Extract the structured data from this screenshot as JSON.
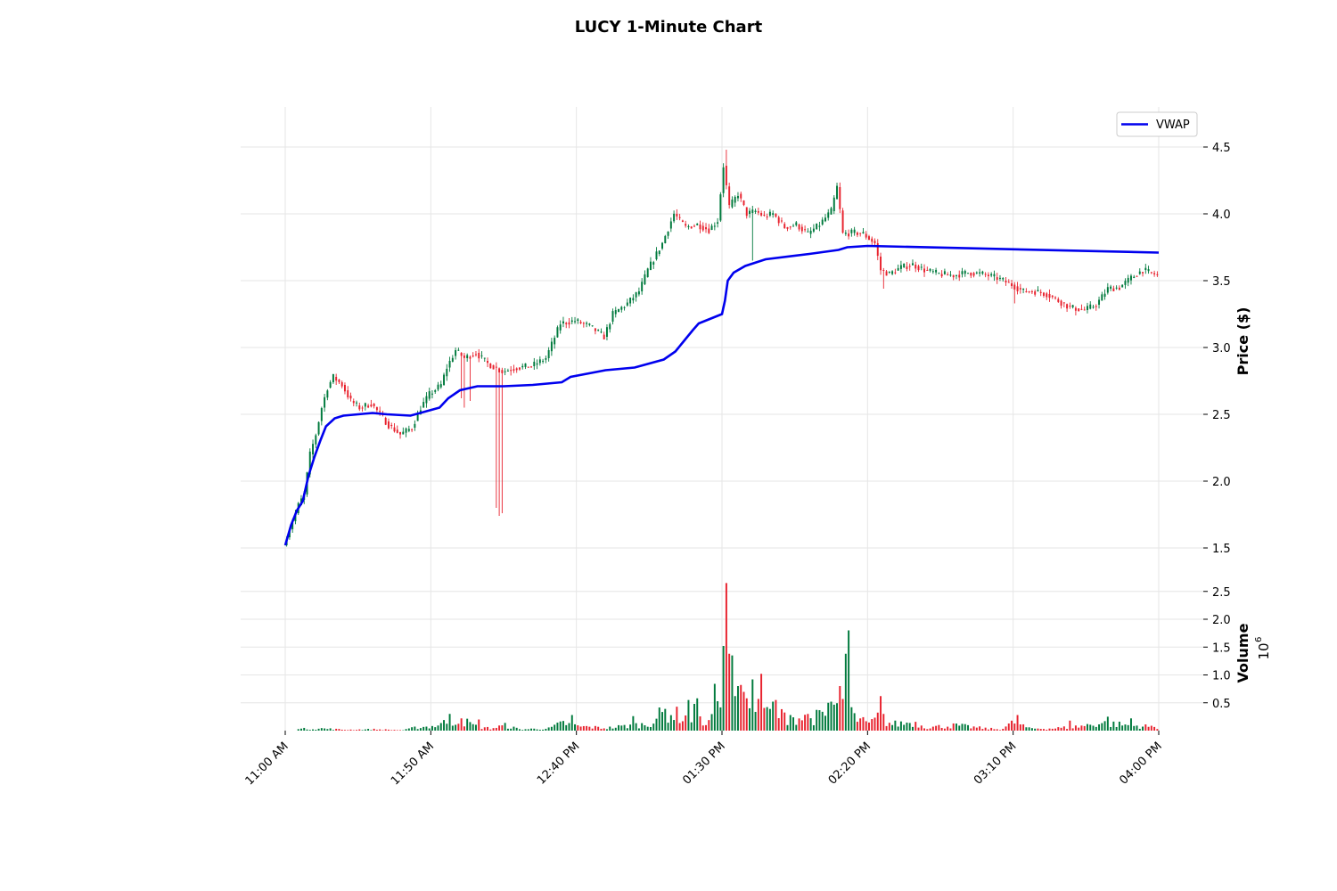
{
  "chart_data": {
    "type": "candlestick",
    "title": "LUCY 1-Minute Chart",
    "price_panel": {
      "ylabel": "Price ($)",
      "ylim": [
        1.3,
        4.8
      ],
      "yticks": [
        1.5,
        2.0,
        2.5,
        3.0,
        3.5,
        4.0,
        4.5
      ],
      "ytick_labels": [
        "1.5",
        "2.0",
        "2.5",
        "3.0",
        "3.5",
        "4.0",
        "4.5"
      ],
      "grid": true
    },
    "volume_panel": {
      "ylabel": "Volume",
      "exponent_label": "10",
      "exponent_power": "6",
      "ylim": [
        0,
        2.8
      ],
      "yticks": [
        0.5,
        1.0,
        1.5,
        2.0,
        2.5
      ],
      "ytick_labels": [
        "0.5",
        "1.0",
        "1.5",
        "2.0",
        "2.5"
      ],
      "grid": true
    },
    "x_axis": {
      "start_minute": 0,
      "end_minute": 300,
      "ticks": [
        0,
        50,
        100,
        150,
        200,
        250,
        300
      ],
      "tick_labels": [
        "11:00 AM",
        "11:50 AM",
        "12:40 PM",
        "01:30 PM",
        "02:20 PM",
        "03:10 PM",
        "04:00 PM"
      ]
    },
    "legend": {
      "position": "top-right",
      "entries": [
        {
          "name": "VWAP",
          "color": "#0000ee"
        }
      ]
    },
    "colors": {
      "up": "#007a3d",
      "down": "#e8222e",
      "vwap": "#0000ee"
    },
    "price_anchors": [
      [
        0,
        1.52
      ],
      [
        3,
        1.7
      ],
      [
        5,
        1.82
      ],
      [
        7,
        1.9
      ],
      [
        9,
        2.2
      ],
      [
        11,
        2.35
      ],
      [
        13,
        2.55
      ],
      [
        15,
        2.7
      ],
      [
        17,
        2.78
      ],
      [
        20,
        2.72
      ],
      [
        23,
        2.6
      ],
      [
        26,
        2.55
      ],
      [
        30,
        2.58
      ],
      [
        33,
        2.5
      ],
      [
        36,
        2.42
      ],
      [
        40,
        2.35
      ],
      [
        44,
        2.4
      ],
      [
        47,
        2.55
      ],
      [
        50,
        2.65
      ],
      [
        54,
        2.72
      ],
      [
        56,
        2.85
      ],
      [
        59,
        2.98
      ],
      [
        62,
        2.92
      ],
      [
        66,
        2.96
      ],
      [
        70,
        2.88
      ],
      [
        75,
        2.82
      ],
      [
        80,
        2.85
      ],
      [
        85,
        2.86
      ],
      [
        90,
        2.92
      ],
      [
        95,
        3.18
      ],
      [
        100,
        3.2
      ],
      [
        105,
        3.16
      ],
      [
        110,
        3.08
      ],
      [
        113,
        3.25
      ],
      [
        118,
        3.33
      ],
      [
        122,
        3.42
      ],
      [
        125,
        3.58
      ],
      [
        130,
        3.78
      ],
      [
        134,
        4.0
      ],
      [
        138,
        3.9
      ],
      [
        142,
        3.92
      ],
      [
        146,
        3.88
      ],
      [
        149,
        3.95
      ],
      [
        151,
        4.36
      ],
      [
        153,
        4.05
      ],
      [
        156,
        4.15
      ],
      [
        159,
        4.0
      ],
      [
        162,
        4.02
      ],
      [
        165,
        3.98
      ],
      [
        168,
        4.0
      ],
      [
        172,
        3.9
      ],
      [
        176,
        3.92
      ],
      [
        180,
        3.85
      ],
      [
        184,
        3.92
      ],
      [
        188,
        4.02
      ],
      [
        190,
        4.2
      ],
      [
        192,
        3.85
      ],
      [
        196,
        3.86
      ],
      [
        199,
        3.85
      ],
      [
        203,
        3.78
      ],
      [
        205,
        3.58
      ],
      [
        208,
        3.55
      ],
      [
        212,
        3.6
      ],
      [
        216,
        3.62
      ],
      [
        220,
        3.58
      ],
      [
        225,
        3.55
      ],
      [
        230,
        3.54
      ],
      [
        235,
        3.56
      ],
      [
        240,
        3.55
      ],
      [
        245,
        3.52
      ],
      [
        250,
        3.47
      ],
      [
        254,
        3.42
      ],
      [
        258,
        3.42
      ],
      [
        262,
        3.4
      ],
      [
        266,
        3.35
      ],
      [
        270,
        3.3
      ],
      [
        275,
        3.28
      ],
      [
        279,
        3.32
      ],
      [
        283,
        3.44
      ],
      [
        287,
        3.45
      ],
      [
        291,
        3.52
      ],
      [
        295,
        3.58
      ],
      [
        300,
        3.54
      ]
    ],
    "spikes": [
      {
        "minute": 60,
        "low": 2.62
      },
      {
        "minute": 61,
        "low": 2.55
      },
      {
        "minute": 63,
        "low": 2.6
      },
      {
        "minute": 72,
        "low": 1.8
      },
      {
        "minute": 73,
        "low": 1.74
      },
      {
        "minute": 74,
        "low": 1.76
      },
      {
        "minute": 151,
        "high": 4.48
      },
      {
        "minute": 160,
        "low": 3.65
      },
      {
        "minute": 205,
        "low": 3.44
      },
      {
        "minute": 250,
        "low": 3.33
      },
      {
        "minute": 271,
        "low": 3.24
      }
    ],
    "vwap": [
      [
        0,
        1.52
      ],
      [
        2,
        1.67
      ],
      [
        4,
        1.78
      ],
      [
        6,
        1.85
      ],
      [
        8,
        2.04
      ],
      [
        10,
        2.18
      ],
      [
        12,
        2.3
      ],
      [
        14,
        2.41
      ],
      [
        17,
        2.47
      ],
      [
        20,
        2.49
      ],
      [
        25,
        2.5
      ],
      [
        30,
        2.51
      ],
      [
        35,
        2.5
      ],
      [
        43,
        2.49
      ],
      [
        48,
        2.52
      ],
      [
        53,
        2.55
      ],
      [
        56,
        2.62
      ],
      [
        60,
        2.68
      ],
      [
        66,
        2.71
      ],
      [
        75,
        2.71
      ],
      [
        85,
        2.72
      ],
      [
        95,
        2.74
      ],
      [
        98,
        2.78
      ],
      [
        110,
        2.83
      ],
      [
        120,
        2.85
      ],
      [
        130,
        2.91
      ],
      [
        134,
        2.97
      ],
      [
        137,
        3.05
      ],
      [
        140,
        3.13
      ],
      [
        142,
        3.18
      ],
      [
        150,
        3.25
      ],
      [
        151,
        3.35
      ],
      [
        152,
        3.5
      ],
      [
        154,
        3.56
      ],
      [
        158,
        3.61
      ],
      [
        165,
        3.66
      ],
      [
        180,
        3.7
      ],
      [
        190,
        3.73
      ],
      [
        193,
        3.75
      ],
      [
        200,
        3.76
      ],
      [
        300,
        3.71
      ]
    ],
    "volume_anchors": [
      [
        5,
        0.04
      ],
      [
        12,
        0.05
      ],
      [
        20,
        0.02
      ],
      [
        30,
        0.03
      ],
      [
        40,
        0.01
      ],
      [
        45,
        0.08
      ],
      [
        50,
        0.1
      ],
      [
        55,
        0.2
      ],
      [
        60,
        0.25
      ],
      [
        65,
        0.1
      ],
      [
        70,
        0.05
      ],
      [
        75,
        0.12
      ],
      [
        80,
        0.03
      ],
      [
        90,
        0.05
      ],
      [
        95,
        0.18
      ],
      [
        100,
        0.1
      ],
      [
        110,
        0.06
      ],
      [
        118,
        0.12
      ],
      [
        124,
        0.15
      ],
      [
        130,
        0.45
      ],
      [
        135,
        0.35
      ],
      [
        140,
        0.25
      ],
      [
        145,
        0.18
      ],
      [
        150,
        1.5
      ],
      [
        152,
        1.2
      ],
      [
        155,
        0.75
      ],
      [
        160,
        0.55
      ],
      [
        165,
        0.45
      ],
      [
        170,
        0.35
      ],
      [
        175,
        0.3
      ],
      [
        180,
        0.3
      ],
      [
        185,
        0.35
      ],
      [
        190,
        0.7
      ],
      [
        195,
        0.3
      ],
      [
        200,
        0.15
      ],
      [
        203,
        0.3
      ],
      [
        208,
        0.15
      ],
      [
        215,
        0.2
      ],
      [
        220,
        0.08
      ],
      [
        230,
        0.12
      ],
      [
        240,
        0.05
      ],
      [
        245,
        0.03
      ],
      [
        250,
        0.2
      ],
      [
        255,
        0.05
      ],
      [
        262,
        0.05
      ],
      [
        270,
        0.08
      ],
      [
        280,
        0.18
      ],
      [
        290,
        0.12
      ],
      [
        300,
        0.08
      ]
    ],
    "volume_peaks": [
      [
        56,
        0.3
      ],
      [
        60,
        0.22
      ],
      [
        66,
        0.2
      ],
      [
        98,
        0.28
      ],
      [
        119,
        0.26
      ],
      [
        138,
        0.55
      ],
      [
        140,
        0.48
      ],
      [
        141,
        0.58
      ],
      [
        150,
        1.52
      ],
      [
        151,
        2.65
      ],
      [
        152,
        1.38
      ],
      [
        153,
        1.35
      ],
      [
        154,
        0.62
      ],
      [
        155,
        0.8
      ],
      [
        156,
        0.82
      ],
      [
        158,
        0.58
      ],
      [
        160,
        0.92
      ],
      [
        163,
        1.02
      ],
      [
        167,
        0.52
      ],
      [
        168,
        0.55
      ],
      [
        173,
        0.28
      ],
      [
        179,
        0.3
      ],
      [
        186,
        0.5
      ],
      [
        187,
        0.52
      ],
      [
        190,
        0.8
      ],
      [
        192,
        1.38
      ],
      [
        193,
        1.8
      ],
      [
        194,
        0.42
      ],
      [
        204,
        0.62
      ],
      [
        205,
        0.3
      ],
      [
        251,
        0.28
      ],
      [
        269,
        0.18
      ],
      [
        282,
        0.25
      ],
      [
        290,
        0.22
      ]
    ]
  }
}
